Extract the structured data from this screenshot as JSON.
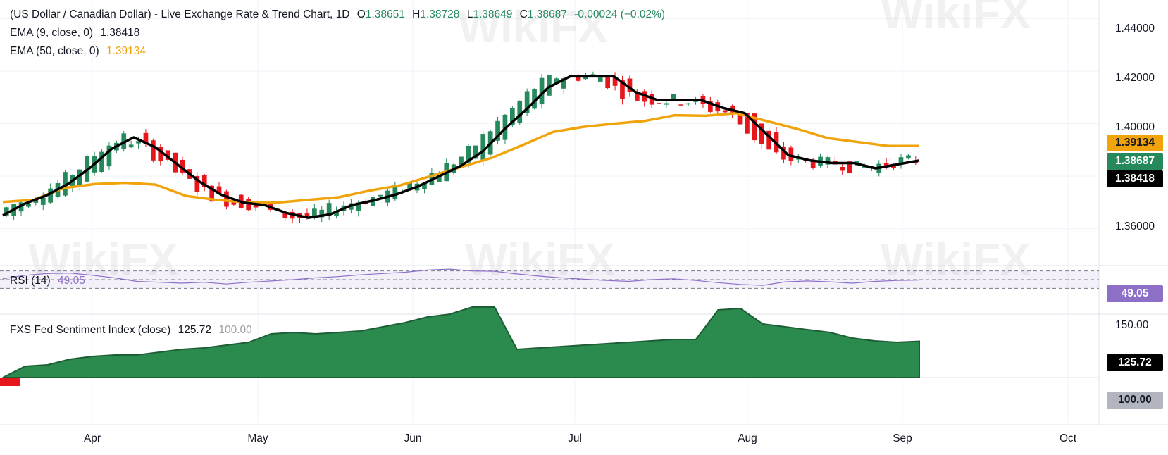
{
  "header": {
    "title": "(US Dollar / Canadian Dollar) - Live Exchange Rate & Trend Chart, 1D",
    "ohlc": {
      "o_label": "O",
      "o": "1.38651",
      "h_label": "H",
      "h": "1.38728",
      "l_label": "L",
      "l": "1.38649",
      "c_label": "C",
      "c": "1.38687",
      "change": "-0.00024 (−0.02%)"
    },
    "ema9": {
      "label": "EMA (9, close, 0)",
      "value": "1.38418"
    },
    "ema50": {
      "label": "EMA (50, close, 0)",
      "value": "1.39134"
    }
  },
  "rsi": {
    "label": "RSI (14)",
    "value": "49.05"
  },
  "fxs": {
    "label": "FXS Fed Sentiment Index (close)",
    "value": "125.72",
    "secondary": "100.00"
  },
  "watermark": "WikiFX",
  "colors": {
    "up": "#26895c",
    "down": "#e5161c",
    "ema9": "#000000",
    "ema50": "#f0a30a",
    "rsi": "#8e6fc8",
    "fxs_fill": "#2b8a4e",
    "fxs_neg": "#e5161c"
  },
  "chart_data": [
    {
      "type": "candlestick",
      "title": "(US Dollar / Canadian Dollar) - Live Exchange Rate & Trend Chart, 1D",
      "x_ticks": [
        "Apr",
        "May",
        "Jun",
        "Jul",
        "Aug",
        "Sep",
        "Oct"
      ],
      "y_ticks": [
        "1.44000",
        "1.42000",
        "1.40000",
        "1.36000"
      ],
      "ylim": [
        1.346,
        1.446
      ],
      "grid": true,
      "current_price": "1.38687",
      "series": [
        {
          "name": "EMA (9, close, 0)",
          "label_value": "1.38418",
          "values": [
            1.3651,
            1.3695,
            1.3727,
            1.3771,
            1.3832,
            1.3905,
            1.3948,
            1.391,
            1.3845,
            1.378,
            1.373,
            1.37,
            1.369,
            1.366,
            1.3642,
            1.3655,
            1.369,
            1.3708,
            1.373,
            1.376,
            1.38,
            1.384,
            1.3895,
            1.398,
            1.4055,
            1.4138,
            1.418,
            1.418,
            1.418,
            1.412,
            1.409,
            1.409,
            1.409,
            1.406,
            1.404,
            1.396,
            1.388,
            1.386,
            1.385,
            1.385,
            1.383,
            1.3845,
            1.386
          ]
        },
        {
          "name": "EMA (50, close, 0)",
          "label_value": "1.39134",
          "values": [
            1.3702,
            1.371,
            1.3755,
            1.377,
            1.3775,
            1.3768,
            1.3725,
            1.371,
            1.37,
            1.37,
            1.371,
            1.372,
            1.3745,
            1.3765,
            1.38,
            1.3835,
            1.387,
            1.3918,
            1.3968,
            1.3988,
            1.4,
            1.401,
            1.4032,
            1.403,
            1.404,
            1.401,
            1.398,
            1.3945,
            1.393,
            1.3915,
            1.3915
          ]
        }
      ]
    },
    {
      "type": "line",
      "title": "RSI (14)",
      "current_value": "49.05",
      "bands": [
        70,
        50,
        30
      ],
      "values": [
        52,
        60,
        64,
        65,
        60,
        54,
        46,
        44,
        42,
        44,
        40,
        44,
        47,
        50,
        54,
        57,
        61,
        64,
        67,
        72,
        74,
        70,
        69,
        63,
        58,
        54,
        51,
        48,
        46,
        50,
        52,
        48,
        43,
        39,
        37,
        45,
        47,
        45,
        42,
        46,
        48,
        49.05
      ]
    },
    {
      "type": "area",
      "title": "FXS Fed Sentiment Index (close)",
      "y_ticks": [
        "150.00",
        "125.72",
        "100.00"
      ],
      "ylim": [
        100,
        150
      ],
      "current_value": "125.72",
      "values": [
        97,
        108,
        109,
        113,
        115,
        116,
        116,
        118,
        120,
        121,
        123,
        125,
        131,
        132,
        131,
        132,
        133,
        136,
        139,
        143,
        145,
        150,
        150,
        120,
        121,
        122,
        123,
        124,
        125,
        126,
        127,
        127,
        148,
        149,
        138,
        136,
        134,
        132,
        128,
        126,
        125,
        125.72
      ]
    }
  ]
}
